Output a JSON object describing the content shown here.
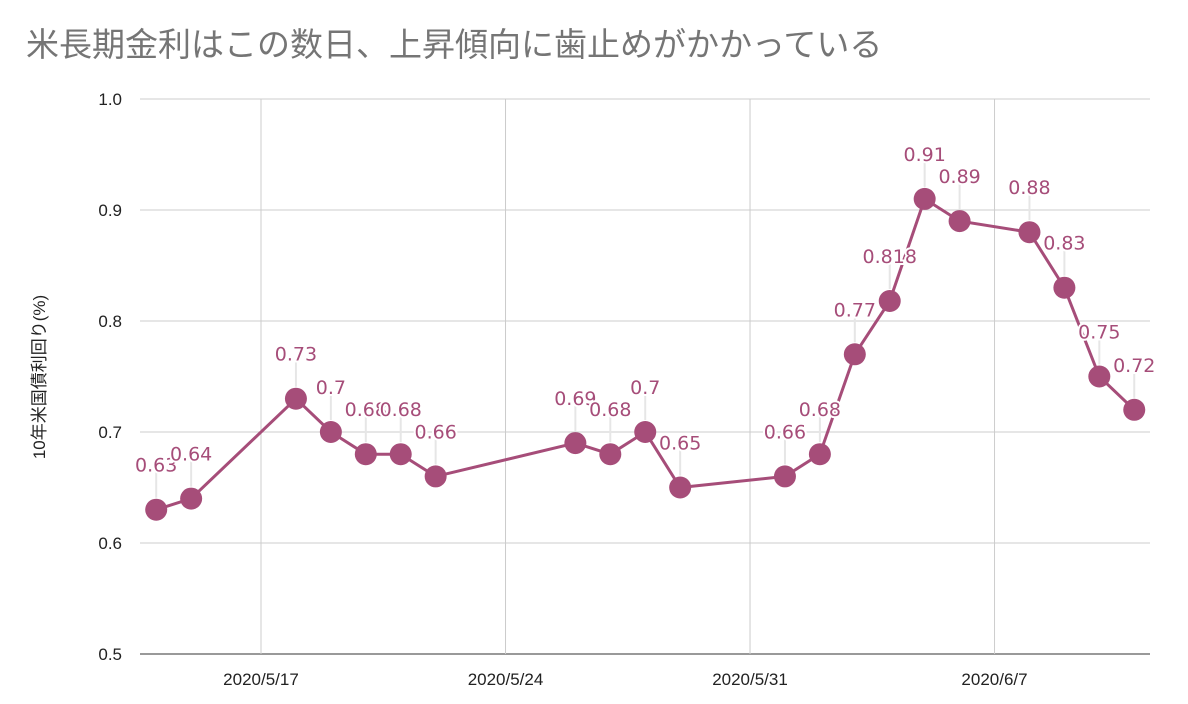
{
  "chart_data": {
    "type": "line",
    "title": "米長期金利はこの数日、上昇傾向に歯止めがかかっている",
    "xlabel": "",
    "ylabel": "10年米国債利回り(%)",
    "ylim": [
      0.5,
      1.0
    ],
    "yticks": [
      "0.5",
      "0.6",
      "0.7",
      "0.8",
      "0.9",
      "1.0"
    ],
    "xticks": [
      {
        "label": "2020/5/17",
        "day": 17
      },
      {
        "label": "2020/5/24",
        "day": 24
      },
      {
        "label": "2020/5/31",
        "day": 31
      },
      {
        "label": "2020/6/7",
        "day": 38
      }
    ],
    "grid": true,
    "color": "#a64d79",
    "series": [
      {
        "name": "10年米国債利回り",
        "points": [
          {
            "date": "2020/5/14",
            "day": 14,
            "value": 0.63,
            "label": "0.63"
          },
          {
            "date": "2020/5/15",
            "day": 15,
            "value": 0.64,
            "label": "0.64"
          },
          {
            "date": "2020/5/18",
            "day": 18,
            "value": 0.73,
            "label": "0.73"
          },
          {
            "date": "2020/5/19",
            "day": 19,
            "value": 0.7,
            "label": "0.7"
          },
          {
            "date": "2020/5/20",
            "day": 20,
            "value": 0.68,
            "label": "0.68"
          },
          {
            "date": "2020/5/21",
            "day": 21,
            "value": 0.68,
            "label": "0.68"
          },
          {
            "date": "2020/5/22",
            "day": 22,
            "value": 0.66,
            "label": "0.66"
          },
          {
            "date": "2020/5/26",
            "day": 26,
            "value": 0.69,
            "label": "0.69"
          },
          {
            "date": "2020/5/27",
            "day": 27,
            "value": 0.68,
            "label": "0.68"
          },
          {
            "date": "2020/5/28",
            "day": 28,
            "value": 0.7,
            "label": "0.7"
          },
          {
            "date": "2020/5/29",
            "day": 29,
            "value": 0.65,
            "label": "0.65"
          },
          {
            "date": "2020/6/1",
            "day": 32,
            "value": 0.66,
            "label": "0.66"
          },
          {
            "date": "2020/6/2",
            "day": 33,
            "value": 0.68,
            "label": "0.68"
          },
          {
            "date": "2020/6/3",
            "day": 34,
            "value": 0.77,
            "label": "0.77"
          },
          {
            "date": "2020/6/4",
            "day": 35,
            "value": 0.818,
            "label": "0.818"
          },
          {
            "date": "2020/6/5",
            "day": 36,
            "value": 0.91,
            "label": "0.91"
          },
          {
            "date": "2020/6/6",
            "day": 37,
            "value": 0.89,
            "label": "0.89"
          },
          {
            "date": "2020/6/8",
            "day": 39,
            "value": 0.88,
            "label": "0.88"
          },
          {
            "date": "2020/6/9",
            "day": 40,
            "value": 0.83,
            "label": "0.83"
          },
          {
            "date": "2020/6/10",
            "day": 41,
            "value": 0.75,
            "label": "0.75"
          },
          {
            "date": "2020/6/11",
            "day": 42,
            "value": 0.72,
            "label": "0.72"
          }
        ]
      }
    ]
  }
}
